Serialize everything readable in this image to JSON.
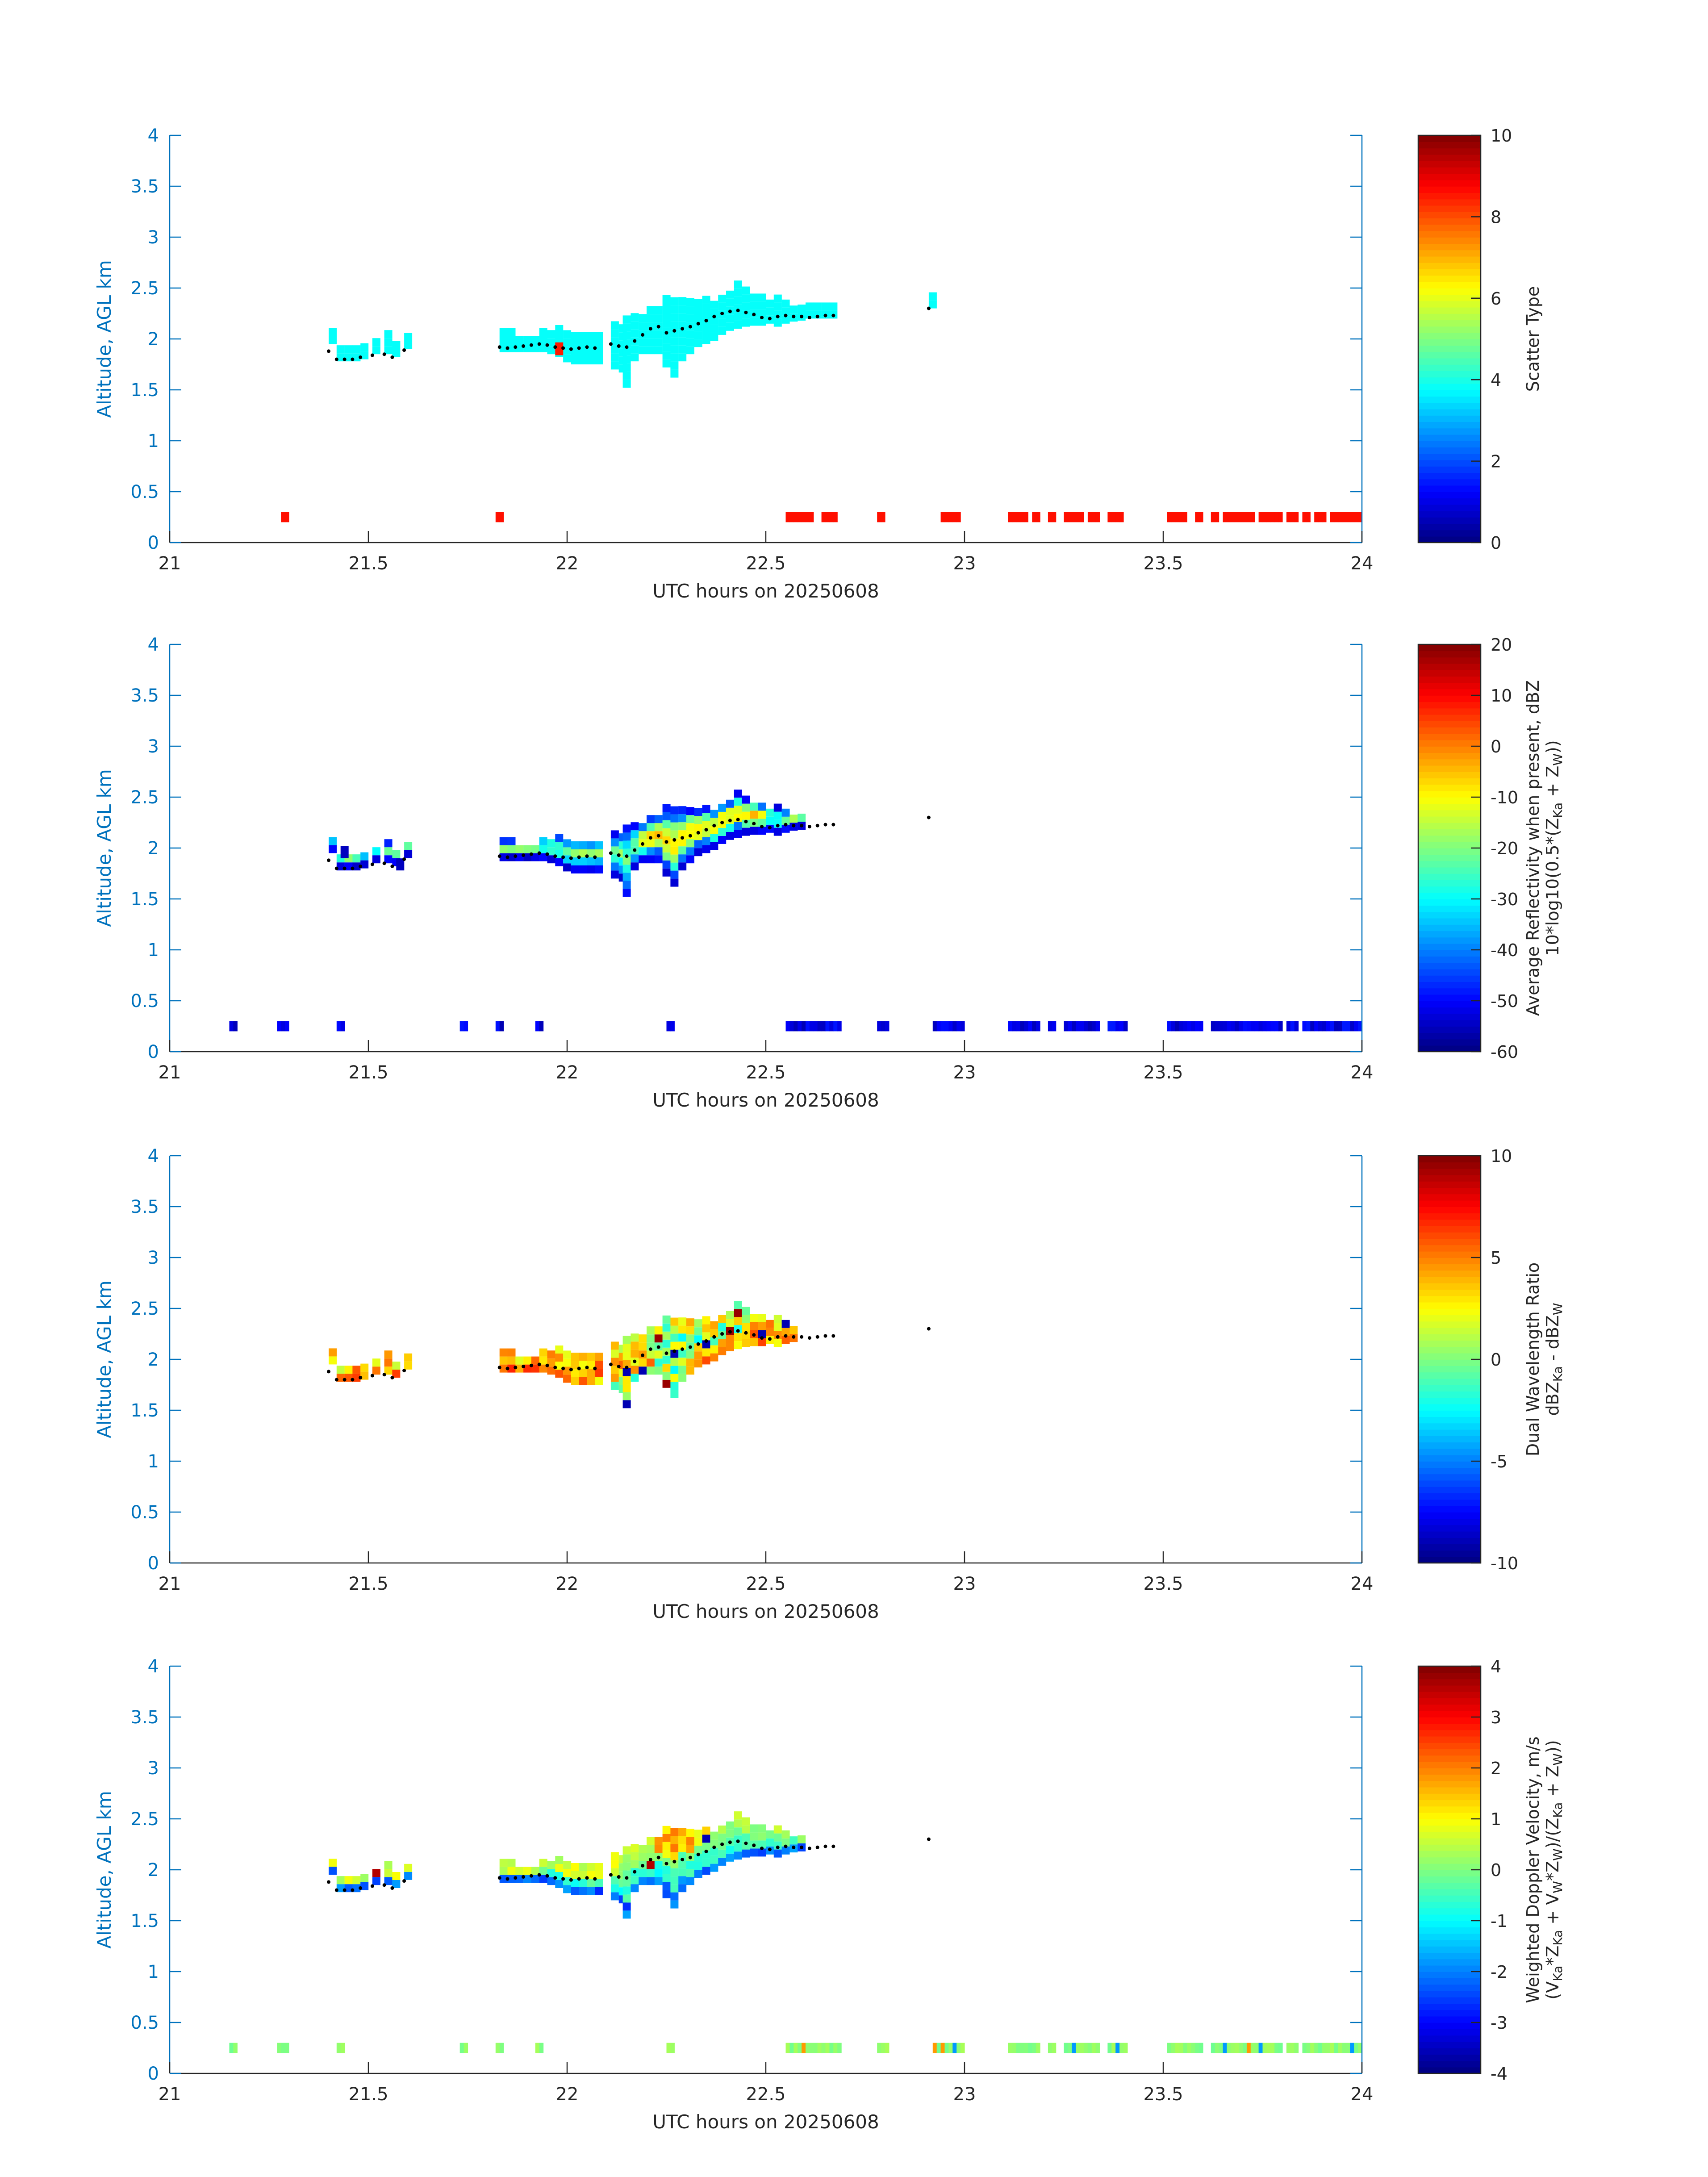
{
  "figure": {
    "axis_color": "#0072BD",
    "text_color": "#262626",
    "track_color": "#000000"
  },
  "chart_data": [
    {
      "type": "heatmap",
      "title": "",
      "xlabel": "UTC hours on 20250608",
      "ylabel": "Altitude, AGL km",
      "xlim": [
        21,
        24
      ],
      "ylim": [
        0,
        4
      ],
      "xticks": [
        "21",
        "21.5",
        "22",
        "22.5",
        "23",
        "23.5",
        "24"
      ],
      "yticks": [
        "0",
        "0.5",
        "1",
        "1.5",
        "2",
        "2.5",
        "3",
        "3.5",
        "4"
      ],
      "colorbar": {
        "label_lines": [
          "Scatter Type"
        ],
        "range": [
          0,
          10
        ],
        "ticks": [
          "0",
          "2",
          "4",
          "6",
          "8",
          "10"
        ],
        "colormap": "jet"
      },
      "cloud_field": "scatter",
      "surface_field": "scatter",
      "cloud_value": 3.8,
      "surface_value": 8.6,
      "outlier_value": 8.5,
      "show_lone_cell": true
    },
    {
      "type": "heatmap",
      "title": "",
      "xlabel": "UTC hours on 20250608",
      "ylabel": "Altitude, AGL km",
      "xlim": [
        21,
        24
      ],
      "ylim": [
        0,
        4
      ],
      "xticks": [
        "21",
        "21.5",
        "22",
        "22.5",
        "23",
        "23.5",
        "24"
      ],
      "yticks": [
        "0",
        "0.5",
        "1",
        "1.5",
        "2",
        "2.5",
        "3",
        "3.5",
        "4"
      ],
      "colorbar": {
        "label_lines": [
          "Average Reflectivity when present, dBZ",
          "10*log10(0.5*(Z",
          "Ka",
          " + Z",
          "W",
          "))"
        ],
        "range": [
          -60,
          20
        ],
        "ticks": [
          "-60",
          "-50",
          "-40",
          "-30",
          "-20",
          "-10",
          "0",
          "10",
          "20"
        ],
        "colormap": "jet"
      },
      "cloud_field": "reflectivity",
      "surface_field": "reflectivity",
      "show_lone_cell": false
    },
    {
      "type": "heatmap",
      "title": "",
      "xlabel": "UTC hours on 20250608",
      "ylabel": "Altitude, AGL km",
      "xlim": [
        21,
        24
      ],
      "ylim": [
        0,
        4
      ],
      "xticks": [
        "21",
        "21.5",
        "22",
        "22.5",
        "23",
        "23.5",
        "24"
      ],
      "yticks": [
        "0",
        "0.5",
        "1",
        "1.5",
        "2",
        "2.5",
        "3",
        "3.5",
        "4"
      ],
      "colorbar": {
        "label_lines": [
          "Dual Wavelength Ratio",
          "dBZ",
          "Ka",
          " - dBZ",
          "W"
        ],
        "range": [
          -10,
          10
        ],
        "ticks": [
          "-10",
          "-5",
          "0",
          "5",
          "10"
        ],
        "colormap": "jet"
      },
      "cloud_field": "dwr",
      "surface_field": "none",
      "show_lone_cell": false
    },
    {
      "type": "heatmap",
      "title": "",
      "xlabel": "UTC hours on 20250608",
      "ylabel": "Altitude, AGL km",
      "xlim": [
        21,
        24
      ],
      "ylim": [
        0,
        4
      ],
      "xticks": [
        "21",
        "21.5",
        "22",
        "22.5",
        "23",
        "23.5",
        "24"
      ],
      "yticks": [
        "0",
        "0.5",
        "1",
        "1.5",
        "2",
        "2.5",
        "3",
        "3.5",
        "4"
      ],
      "colorbar": {
        "label_lines": [
          "Weighted Doppler Velocity, m/s",
          "(V",
          "Ka",
          "*Z",
          "Ka",
          " + V",
          "W",
          "*Z",
          "W",
          ")/(Z",
          "Ka",
          " + Z",
          "W",
          "))"
        ],
        "range": [
          -4,
          4
        ],
        "ticks": [
          "-4",
          "-3",
          "-2",
          "-1",
          "0",
          "1",
          "2",
          "3",
          "4"
        ],
        "colormap": "jet"
      },
      "cloud_field": "velocity",
      "surface_field": "velocity",
      "show_lone_cell": false
    }
  ],
  "cloud_layers": {
    "note_units": "time in UTC hours, base/top in km AGL",
    "columns": [
      [
        21.4,
        1.95,
        2.05
      ],
      [
        21.42,
        1.78,
        1.9
      ],
      [
        21.44,
        1.78,
        1.92
      ],
      [
        21.46,
        1.78,
        1.92
      ],
      [
        21.48,
        1.8,
        1.9
      ],
      [
        21.51,
        1.85,
        1.97
      ],
      [
        21.54,
        1.85,
        2.02
      ],
      [
        21.56,
        1.82,
        1.95
      ],
      [
        21.59,
        1.9,
        2.04
      ],
      [
        21.83,
        1.87,
        2.05
      ],
      [
        21.85,
        1.87,
        2.05
      ],
      [
        21.87,
        1.87,
        2.02
      ],
      [
        21.89,
        1.87,
        2.02
      ],
      [
        21.91,
        1.87,
        2.02
      ],
      [
        21.93,
        1.87,
        2.08
      ],
      [
        21.95,
        1.85,
        2.08
      ],
      [
        21.97,
        1.82,
        2.08
      ],
      [
        21.99,
        1.77,
        2.06
      ],
      [
        22.01,
        1.75,
        2.06
      ],
      [
        22.03,
        1.75,
        2.06
      ],
      [
        22.05,
        1.75,
        2.05
      ],
      [
        22.07,
        1.75,
        2.05
      ],
      [
        22.11,
        1.7,
        2.1
      ],
      [
        22.13,
        1.67,
        2.13
      ],
      [
        22.14,
        1.52,
        2.16
      ],
      [
        22.16,
        1.78,
        2.2
      ],
      [
        22.18,
        1.85,
        2.24
      ],
      [
        22.2,
        1.85,
        2.28
      ],
      [
        22.22,
        1.85,
        2.32
      ],
      [
        22.24,
        1.72,
        2.36
      ],
      [
        22.26,
        1.62,
        2.36
      ],
      [
        22.28,
        1.78,
        2.36
      ],
      [
        22.3,
        1.85,
        2.36
      ],
      [
        22.32,
        1.92,
        2.36
      ],
      [
        22.34,
        1.95,
        2.36
      ],
      [
        22.36,
        1.98,
        2.36
      ],
      [
        22.38,
        2.04,
        2.42
      ],
      [
        22.4,
        2.08,
        2.46
      ],
      [
        22.42,
        2.1,
        2.5
      ],
      [
        22.44,
        2.12,
        2.46
      ],
      [
        22.46,
        2.13,
        2.44
      ],
      [
        22.48,
        2.13,
        2.42
      ],
      [
        22.5,
        2.15,
        2.38
      ],
      [
        22.52,
        2.12,
        2.36
      ],
      [
        22.54,
        2.15,
        2.34
      ],
      [
        22.56,
        2.17,
        2.32
      ],
      [
        22.58,
        2.18,
        2.32
      ],
      [
        22.6,
        2.2,
        2.32
      ],
      [
        22.62,
        2.2,
        2.35
      ],
      [
        22.64,
        2.2,
        2.35
      ],
      [
        22.66,
        2.2,
        2.35
      ],
      [
        22.91,
        2.3,
        2.42
      ]
    ],
    "max_time_by_panel": [
      22.92,
      22.58,
      22.56,
      22.58
    ]
  },
  "surface_gates": {
    "panel1": [
      [
        21.28,
        21.3
      ],
      [
        21.82,
        21.84
      ],
      [
        22.55,
        22.62
      ],
      [
        22.64,
        22.68
      ],
      [
        22.78,
        22.8
      ],
      [
        22.94,
        22.99
      ],
      [
        23.11,
        23.16
      ],
      [
        23.17,
        23.19
      ],
      [
        23.21,
        23.23
      ],
      [
        23.25,
        23.3
      ],
      [
        23.31,
        23.34
      ],
      [
        23.36,
        23.4
      ],
      [
        23.51,
        23.56
      ],
      [
        23.58,
        23.6
      ],
      [
        23.62,
        23.64
      ],
      [
        23.65,
        23.73
      ],
      [
        23.74,
        23.8
      ],
      [
        23.81,
        23.84
      ],
      [
        23.85,
        23.87
      ],
      [
        23.88,
        23.91
      ],
      [
        23.92,
        24.0
      ]
    ],
    "shared": [
      [
        21.15,
        21.17
      ],
      [
        21.27,
        21.3
      ],
      [
        21.42,
        21.44
      ],
      [
        21.73,
        21.75
      ],
      [
        21.82,
        21.84
      ],
      [
        21.92,
        21.94
      ],
      [
        22.25,
        22.27
      ],
      [
        22.55,
        22.69
      ],
      [
        22.78,
        22.81
      ],
      [
        22.92,
        23.0
      ],
      [
        23.11,
        23.19
      ],
      [
        23.21,
        23.23
      ],
      [
        23.25,
        23.34
      ],
      [
        23.36,
        23.41
      ],
      [
        23.51,
        23.6
      ],
      [
        23.62,
        23.8
      ],
      [
        23.81,
        23.84
      ],
      [
        23.85,
        24.0
      ]
    ]
  },
  "aircraft_track": {
    "note_units": "time in UTC hours, altitude in km AGL",
    "points": [
      [
        21.4,
        1.88
      ],
      [
        21.42,
        1.8
      ],
      [
        21.44,
        1.8
      ],
      [
        21.46,
        1.8
      ],
      [
        21.48,
        1.82
      ],
      [
        21.51,
        1.84
      ],
      [
        21.54,
        1.85
      ],
      [
        21.56,
        1.82
      ],
      [
        21.59,
        1.89
      ],
      [
        21.83,
        1.92
      ],
      [
        21.85,
        1.91
      ],
      [
        21.87,
        1.92
      ],
      [
        21.89,
        1.93
      ],
      [
        21.91,
        1.94
      ],
      [
        21.93,
        1.95
      ],
      [
        21.95,
        1.94
      ],
      [
        21.97,
        1.92
      ],
      [
        21.99,
        1.91
      ],
      [
        22.01,
        1.9
      ],
      [
        22.03,
        1.91
      ],
      [
        22.05,
        1.92
      ],
      [
        22.07,
        1.91
      ],
      [
        22.11,
        1.95
      ],
      [
        22.13,
        1.93
      ],
      [
        22.15,
        1.92
      ],
      [
        22.17,
        1.98
      ],
      [
        22.19,
        2.04
      ],
      [
        22.21,
        2.1
      ],
      [
        22.23,
        2.12
      ],
      [
        22.25,
        2.06
      ],
      [
        22.27,
        2.08
      ],
      [
        22.29,
        2.1
      ],
      [
        22.31,
        2.12
      ],
      [
        22.33,
        2.15
      ],
      [
        22.35,
        2.18
      ],
      [
        22.37,
        2.22
      ],
      [
        22.39,
        2.25
      ],
      [
        22.41,
        2.27
      ],
      [
        22.43,
        2.28
      ],
      [
        22.45,
        2.26
      ],
      [
        22.47,
        2.24
      ],
      [
        22.49,
        2.21
      ],
      [
        22.51,
        2.2
      ],
      [
        22.53,
        2.22
      ],
      [
        22.55,
        2.23
      ],
      [
        22.57,
        2.22
      ],
      [
        22.59,
        2.22
      ],
      [
        22.61,
        2.21
      ],
      [
        22.63,
        2.22
      ],
      [
        22.65,
        2.23
      ],
      [
        22.67,
        2.23
      ],
      [
        22.91,
        2.3
      ]
    ]
  },
  "reflectivity_outliers": [
    [
      21.43,
      1.9
    ],
    [
      21.57,
      1.78
    ]
  ],
  "scatter_outlier": [
    21.97,
    1.84
  ]
}
